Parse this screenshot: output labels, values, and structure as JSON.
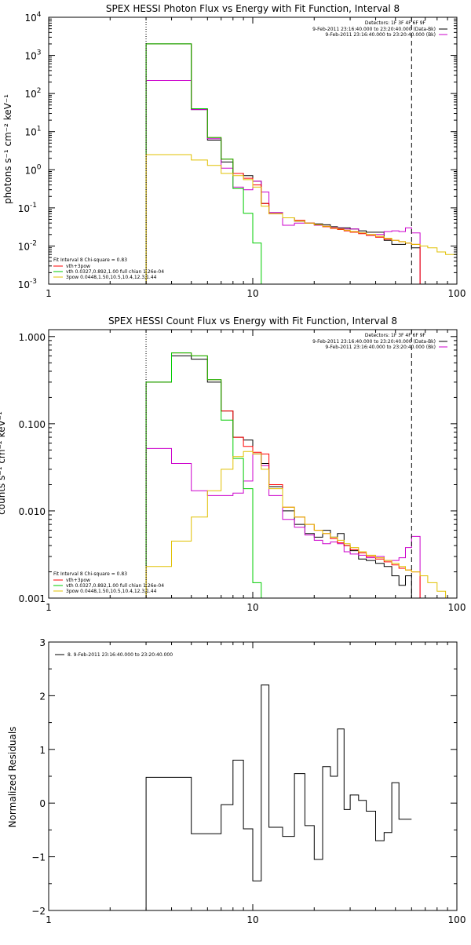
{
  "chart_data": [
    {
      "type": "line",
      "title": "SPEX HESSI Photon Flux vs Energy with Fit Function, Interval 8",
      "ylabel": "photons s⁻¹ cm⁻² keV⁻¹",
      "xscale": "log",
      "yscale": "log",
      "xlim": [
        1,
        100
      ],
      "ylim": [
        0.001,
        10000
      ],
      "x_ticks": [
        "1",
        "10",
        "100"
      ],
      "y_ticks": [
        {
          "v": 0.001,
          "mant": "10",
          "exp": "-3"
        },
        {
          "v": 0.01,
          "mant": "10",
          "exp": "-2"
        },
        {
          "v": 0.1,
          "mant": "10",
          "exp": "-1"
        },
        {
          "v": 1,
          "mant": "10",
          "exp": "0"
        },
        {
          "v": 10,
          "mant": "10",
          "exp": "1"
        },
        {
          "v": 100,
          "mant": "10",
          "exp": "2"
        },
        {
          "v": 1000,
          "mant": "10",
          "exp": "3"
        },
        {
          "v": 10000,
          "mant": "10",
          "exp": "4"
        }
      ],
      "vlines": [
        {
          "x": 3,
          "style": "dotted"
        },
        {
          "x": 60,
          "style": "dashed"
        }
      ],
      "legend_top_right": [
        {
          "text": "Detectors: 1F 3F 4F 6F 9F",
          "color": ""
        },
        {
          "text": "9-Feb-2011 23:16:40.000 to 23:20:40.000 (Data-Bk)",
          "color": "#000000"
        },
        {
          "text": "9-Feb-2011 23:16:40.000 to 23:20:40.000 (Bk)",
          "color": "#cc00cc"
        }
      ],
      "legend_bottom_left": [
        {
          "text": "Fit Interval 8   Chi-square = 0.83",
          "color": ""
        },
        {
          "text": "vth+3pow",
          "color": "#ff0000"
        },
        {
          "text": "vth 0.0327,0.892,1.00  full chian 1.26e-04",
          "color": "#00cc00"
        },
        {
          "text": "3pow 0.0448,1.50,10.5,10.4,12.3,1.44",
          "color": "#e0c000"
        }
      ],
      "edges": [
        3,
        4,
        5,
        6,
        7,
        8,
        9,
        10,
        11,
        12,
        14,
        16,
        18,
        20,
        22,
        24,
        26,
        28,
        30,
        33,
        36,
        40,
        44,
        48,
        52,
        56,
        60,
        66,
        72,
        80,
        88,
        100
      ],
      "series": [
        {
          "name": "Data-Bk",
          "color": "#000000",
          "values": [
            2000,
            2000,
            38,
            6,
            1.6,
            0.8,
            0.7,
            0.5,
            0.13,
            0.075,
            0.055,
            0.045,
            0.04,
            0.038,
            0.036,
            0.032,
            0.03,
            0.03,
            0.028,
            0.025,
            0.023,
            0.023,
            0.014,
            0.011,
            0.011,
            0.012,
            0.009
          ]
        },
        {
          "name": "Bk",
          "color": "#cc00cc",
          "values": [
            220,
            220,
            38,
            6.5,
            1.1,
            0.35,
            0.3,
            0.5,
            0.26,
            0.075,
            0.035,
            0.04,
            0.04,
            0.035,
            0.033,
            0.031,
            0.029,
            0.028,
            0.028,
            0.022,
            0.019,
            0.02,
            0.024,
            0.025,
            0.024,
            0.03,
            0.022
          ]
        },
        {
          "name": "vth+3pow",
          "color": "#ff0000",
          "values": [
            2000,
            2000,
            40,
            7,
            1.9,
            0.8,
            0.6,
            0.4,
            0.13,
            0.07,
            0.055,
            0.047,
            0.04,
            0.036,
            0.032,
            0.029,
            0.027,
            0.025,
            0.023,
            0.021,
            0.019,
            0.017,
            0.015,
            0.014,
            0.013,
            0.012,
            0.011
          ]
        },
        {
          "name": "vth",
          "color": "#00cc00",
          "values": [
            2000,
            2000,
            40,
            7,
            1.9,
            0.32,
            0.072,
            0.012
          ]
        },
        {
          "name": "3pow",
          "color": "#e0c000",
          "values": [
            2.5,
            2.5,
            1.8,
            1.3,
            0.8,
            0.7,
            0.55,
            0.35,
            0.11,
            0.07,
            0.055,
            0.045,
            0.04,
            0.036,
            0.033,
            0.03,
            0.028,
            0.026,
            0.024,
            0.022,
            0.02,
            0.018,
            0.016,
            0.014,
            0.013,
            0.012,
            0.011,
            0.01,
            0.009,
            0.007,
            0.006
          ]
        }
      ]
    },
    {
      "type": "line",
      "title": "SPEX HESSI Count Flux vs Energy with Fit Function, Interval 8",
      "ylabel": "counts s⁻¹ cm⁻² keV⁻¹",
      "xscale": "log",
      "yscale": "log",
      "xlim": [
        1,
        100
      ],
      "ylim": [
        0.001,
        1.2
      ],
      "x_ticks": [
        "1",
        "10",
        "100"
      ],
      "y_ticks": [
        {
          "v": 0.001,
          "label": "0.001"
        },
        {
          "v": 0.01,
          "label": "0.010"
        },
        {
          "v": 0.1,
          "label": "0.100"
        },
        {
          "v": 1,
          "label": "1.000"
        }
      ],
      "vlines": [
        {
          "x": 3,
          "style": "dotted"
        },
        {
          "x": 60,
          "style": "dashed"
        }
      ],
      "legend_top_right": [
        {
          "text": "Detectors: 1F 3F 4F 6F 9F",
          "color": ""
        },
        {
          "text": "9-Feb-2011 23:16:40.000 to 23:20:40.000 (Data-Bk)",
          "color": "#000000"
        },
        {
          "text": "9-Feb-2011 23:16:40.000 to 23:20:40.000 (Bk)",
          "color": "#cc00cc"
        }
      ],
      "legend_bottom_left": [
        {
          "text": "Fit Interval 8   Chi-square = 0.83",
          "color": ""
        },
        {
          "text": "vth+3pow",
          "color": "#ff0000"
        },
        {
          "text": "vth 0.0327,0.892,1.00  full chian 1.26e-04",
          "color": "#00cc00"
        },
        {
          "text": "3pow 0.0448,1.50,10.5,10.4,12.3,1.44",
          "color": "#e0c000"
        }
      ],
      "edges": [
        3,
        4,
        5,
        6,
        7,
        8,
        9,
        10,
        11,
        12,
        14,
        16,
        18,
        20,
        22,
        24,
        26,
        28,
        30,
        33,
        36,
        40,
        44,
        48,
        52,
        56,
        60,
        66,
        72,
        80,
        88,
        100
      ],
      "series": [
        {
          "name": "Data-Bk",
          "color": "#000000",
          "values": [
            0.3,
            0.6,
            0.55,
            0.3,
            0.14,
            0.07,
            0.065,
            0.045,
            0.035,
            0.019,
            0.01,
            0.007,
            0.0055,
            0.005,
            0.006,
            0.005,
            0.0055,
            0.004,
            0.0035,
            0.0028,
            0.0027,
            0.0025,
            0.0023,
            0.0018,
            0.0014,
            0.0018,
            0.001
          ]
        },
        {
          "name": "Bk",
          "color": "#cc00cc",
          "values": [
            0.052,
            0.035,
            0.017,
            0.015,
            0.015,
            0.016,
            0.022,
            0.045,
            0.033,
            0.015,
            0.008,
            0.0065,
            0.0053,
            0.0046,
            0.0042,
            0.0044,
            0.0042,
            0.0034,
            0.0032,
            0.0031,
            0.0029,
            0.003,
            0.0027,
            0.0027,
            0.0029,
            0.0038,
            0.0051
          ]
        },
        {
          "name": "vth+3pow",
          "color": "#ff0000",
          "values": [
            0.3,
            0.65,
            0.6,
            0.32,
            0.14,
            0.07,
            0.055,
            0.047,
            0.045,
            0.02,
            0.011,
            0.0085,
            0.007,
            0.006,
            0.0055,
            0.0048,
            0.0043,
            0.004,
            0.0036,
            0.0033,
            0.003,
            0.0028,
            0.0026,
            0.0024,
            0.0022,
            0.0021,
            0.002
          ]
        },
        {
          "name": "vth",
          "color": "#00cc00",
          "values": [
            0.3,
            0.65,
            0.6,
            0.32,
            0.11,
            0.04,
            0.018,
            0.0015
          ]
        },
        {
          "name": "3pow",
          "color": "#e0c000",
          "values": [
            0.0023,
            0.0045,
            0.0085,
            0.017,
            0.03,
            0.042,
            0.048,
            0.045,
            0.03,
            0.018,
            0.011,
            0.0085,
            0.007,
            0.006,
            0.0055,
            0.005,
            0.0046,
            0.0042,
            0.0038,
            0.0034,
            0.0031,
            0.0029,
            0.0027,
            0.0025,
            0.0023,
            0.0021,
            0.002,
            0.0018,
            0.0015,
            0.0012,
            0.001
          ]
        }
      ]
    },
    {
      "type": "line",
      "title": "",
      "ylabel": "Normalized Residuals",
      "xscale": "log",
      "yscale": "linear",
      "xlim": [
        1,
        100
      ],
      "ylim": [
        -2,
        3
      ],
      "x_ticks": [
        "1",
        "10",
        "100"
      ],
      "y_ticks": [
        {
          "v": -2,
          "label": "−2"
        },
        {
          "v": -1,
          "label": "−1"
        },
        {
          "v": 0,
          "label": "0"
        },
        {
          "v": 1,
          "label": "1"
        },
        {
          "v": 2,
          "label": "2"
        },
        {
          "v": 3,
          "label": "3"
        }
      ],
      "legend_top_left": "8. 9-Feb-2011 23:16:40.000 to 23:20:40.000",
      "edges": [
        3,
        4,
        5,
        6,
        7,
        8,
        9,
        10,
        11,
        12,
        14,
        16,
        18,
        20,
        22,
        24,
        26,
        28,
        30,
        33,
        36,
        40,
        44,
        48,
        52,
        56,
        60
      ],
      "series": [
        {
          "name": "8. 9-Feb-2011 23:16:40.000 to 23:20:40.000",
          "color": "#000000",
          "values": [
            0.48,
            0.48,
            -0.57,
            -0.57,
            -0.03,
            0.8,
            -0.48,
            -1.45,
            2.2,
            -0.45,
            -0.62,
            0.55,
            -0.42,
            -1.05,
            0.68,
            0.5,
            1.38,
            -0.12,
            0.15,
            0.05,
            -0.15,
            -0.7,
            -0.55,
            0.38,
            -0.3,
            -0.3
          ]
        }
      ]
    }
  ]
}
